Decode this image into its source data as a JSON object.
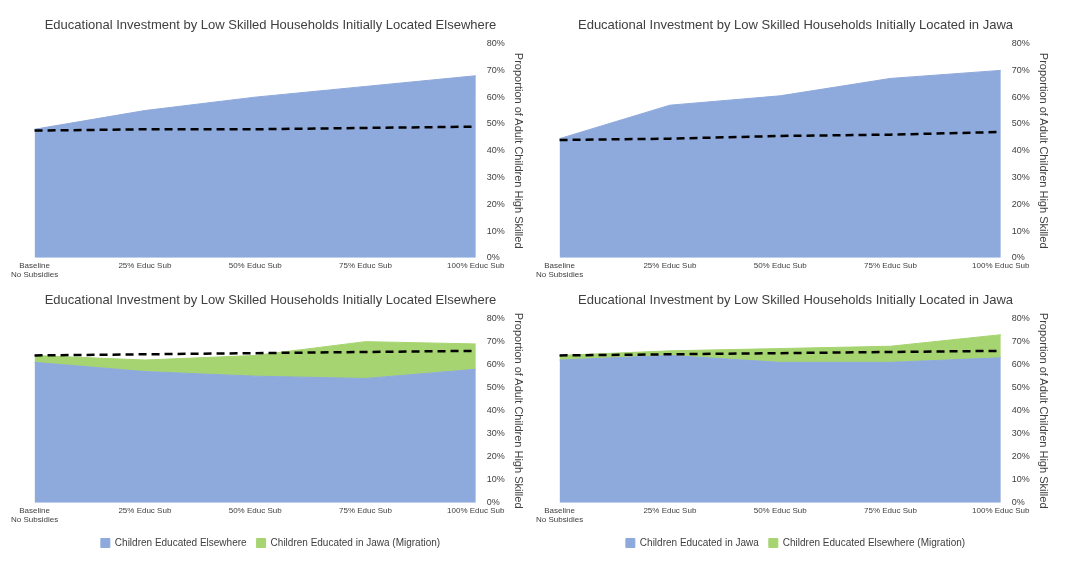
{
  "chart_data": [
    {
      "type": "area",
      "title": "Educational Investment by Low Skilled Households Initially Located Elsewhere",
      "ylabel": "Proportion of Adult Children High Skilled",
      "categories": [
        "Baseline\nNo Subsidies",
        "25% Educ Sub",
        "50% Educ Sub",
        "75% Educ Sub",
        "100% Educ Sub"
      ],
      "stacked": true,
      "marker": "none",
      "legend": false,
      "grid": false,
      "ylim": [
        0,
        80
      ],
      "yticks": [
        {
          "value": 0,
          "label": "0%"
        },
        {
          "value": 10,
          "label": "10%"
        },
        {
          "value": 20,
          "label": "20%"
        },
        {
          "value": 30,
          "label": "30%"
        },
        {
          "value": 40,
          "label": "40%"
        },
        {
          "value": 50,
          "label": "50%"
        },
        {
          "value": 60,
          "label": "60%"
        },
        {
          "value": 70,
          "label": "70%"
        },
        {
          "value": 80,
          "label": "80%"
        }
      ],
      "series": [
        {
          "type": "area",
          "color": "#8ea9db",
          "values": [
            48,
            55,
            60,
            64,
            68
          ]
        },
        {
          "type": "line",
          "color": "#000000",
          "line_style": "dashed",
          "values": [
            47.5,
            48,
            48,
            48.5,
            49
          ]
        }
      ]
    },
    {
      "type": "area",
      "title": "Educational Investment by Low Skilled Households Initially Located in Jawa",
      "ylabel": "Proportion of Adult Children High Skilled",
      "categories": [
        "Baseline\nNo Subsidies",
        "25% Educ Sub",
        "50% Educ Sub",
        "75% Educ Sub",
        "100% Educ Sub"
      ],
      "stacked": true,
      "marker": "none",
      "legend": false,
      "grid": false,
      "ylim": [
        0,
        80
      ],
      "yticks": [
        {
          "value": 0,
          "label": "0%"
        },
        {
          "value": 10,
          "label": "10%"
        },
        {
          "value": 20,
          "label": "20%"
        },
        {
          "value": 30,
          "label": "30%"
        },
        {
          "value": 40,
          "label": "40%"
        },
        {
          "value": 50,
          "label": "50%"
        },
        {
          "value": 60,
          "label": "60%"
        },
        {
          "value": 70,
          "label": "70%"
        },
        {
          "value": 80,
          "label": "80%"
        }
      ],
      "series": [
        {
          "type": "area",
          "color": "#8ea9db",
          "values": [
            44.5,
            57,
            60.5,
            67,
            70
          ]
        },
        {
          "type": "line",
          "color": "#000000",
          "line_style": "dashed",
          "values": [
            44,
            44.5,
            45.5,
            46,
            47
          ]
        }
      ]
    },
    {
      "type": "area",
      "title": "Educational Investment by Low Skilled Households Initially Located Elsewhere",
      "ylabel": "Proportion of Adult Children High Skilled",
      "categories": [
        "Baseline\nNo Subsidies",
        "25% Educ Sub",
        "50% Educ Sub",
        "75% Educ Sub",
        "100% Educ Sub"
      ],
      "stacked": true,
      "marker": "none",
      "legend": "bottom",
      "grid": false,
      "ylim": [
        0,
        80
      ],
      "yticks": [
        {
          "value": 0,
          "label": "0%"
        },
        {
          "value": 10,
          "label": "10%"
        },
        {
          "value": 20,
          "label": "20%"
        },
        {
          "value": 30,
          "label": "30%"
        },
        {
          "value": 40,
          "label": "40%"
        },
        {
          "value": 50,
          "label": "50%"
        },
        {
          "value": 60,
          "label": "60%"
        },
        {
          "value": 70,
          "label": "70%"
        },
        {
          "value": 80,
          "label": "80%"
        }
      ],
      "series": [
        {
          "type": "area",
          "name": "Children Educated Elsewhere",
          "color": "#8ea9db",
          "values": [
            61,
            57,
            55,
            54,
            58
          ]
        },
        {
          "type": "area",
          "name": "Children Educated in Jawa (Migration)",
          "color": "#a6d470",
          "values": [
            3,
            5,
            9,
            16,
            11
          ]
        },
        {
          "type": "line",
          "color": "#000000",
          "line_style": "dashed",
          "values": [
            64,
            64.5,
            65,
            65.5,
            66
          ]
        }
      ]
    },
    {
      "type": "area",
      "title": "Educational Investment by Low Skilled Households Initially Located in Jawa",
      "ylabel": "Proportion of Adult Children High Skilled",
      "categories": [
        "Baseline\nNo Subsidies",
        "25% Educ Sub",
        "50% Educ Sub",
        "75% Educ Sub",
        "100% Educ Sub"
      ],
      "stacked": true,
      "marker": "none",
      "legend": "bottom",
      "grid": false,
      "ylim": [
        0,
        80
      ],
      "yticks": [
        {
          "value": 0,
          "label": "0%"
        },
        {
          "value": 10,
          "label": "10%"
        },
        {
          "value": 20,
          "label": "20%"
        },
        {
          "value": 30,
          "label": "30%"
        },
        {
          "value": 40,
          "label": "40%"
        },
        {
          "value": 50,
          "label": "50%"
        },
        {
          "value": 60,
          "label": "60%"
        },
        {
          "value": 70,
          "label": "70%"
        },
        {
          "value": 80,
          "label": "80%"
        }
      ],
      "series": [
        {
          "type": "area",
          "name": "Children Educated in Jawa",
          "color": "#8ea9db",
          "values": [
            62,
            64,
            61,
            61,
            63
          ]
        },
        {
          "type": "area",
          "name": "Children Educated Elsewhere (Migration)",
          "color": "#a6d470",
          "values": [
            2,
            2,
            6,
            7,
            10
          ]
        },
        {
          "type": "line",
          "color": "#000000",
          "line_style": "dashed",
          "values": [
            64,
            64.5,
            65,
            65.5,
            66
          ]
        }
      ]
    }
  ]
}
